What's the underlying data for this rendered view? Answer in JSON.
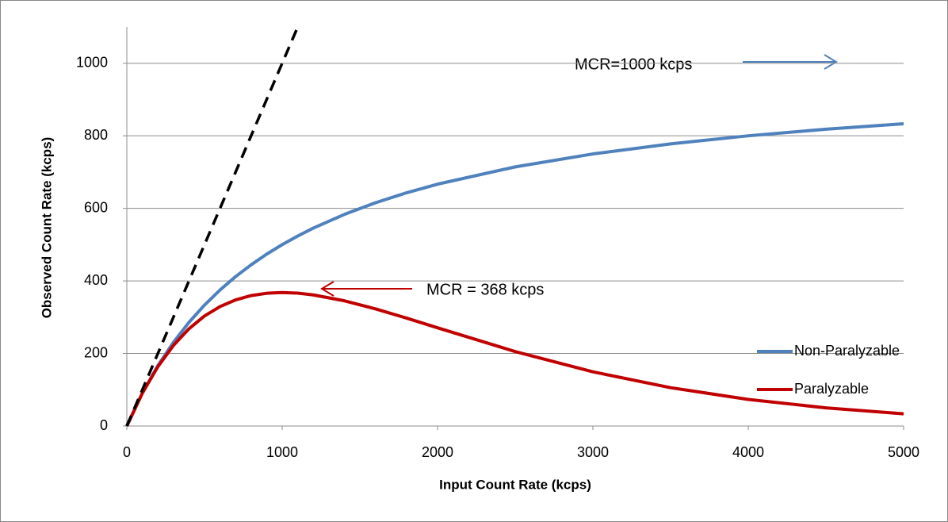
{
  "chart_data": {
    "type": "line",
    "x_label": "Input Count Rate (kcps)",
    "y_label": "Observed Count Rate (kcps)",
    "x": [
      0,
      100,
      200,
      300,
      400,
      500,
      600,
      700,
      800,
      900,
      1000,
      1100,
      1200,
      1400,
      1600,
      1800,
      2000,
      2500,
      3000,
      3500,
      4000,
      4500,
      5000
    ],
    "series": [
      {
        "name": "Non-Paralyzable",
        "color": "#4f81bd",
        "values": [
          0,
          90.9,
          166.7,
          230.8,
          285.7,
          333.3,
          375,
          411.8,
          444.4,
          473.7,
          500,
          523.8,
          545.5,
          583.3,
          615.4,
          642.9,
          666.7,
          714.3,
          750,
          777.8,
          800,
          818.2,
          833.3
        ]
      },
      {
        "name": "Paralyzable",
        "color": "#c00000",
        "values": [
          0,
          90.5,
          163.7,
          222.2,
          268.1,
          303.3,
          329.3,
          347.6,
          359.5,
          365.9,
          367.9,
          366.2,
          361.4,
          345.2,
          323.0,
          297.5,
          270.7,
          205.2,
          149.4,
          105.7,
          73.3,
          50.0,
          33.7
        ]
      },
      {
        "color": "#000000",
        "dashed": true,
        "values": [
          0,
          100,
          200,
          300,
          400,
          500,
          600,
          700,
          800,
          900,
          1000,
          1100,
          null,
          null,
          null,
          null,
          null,
          null,
          null,
          null,
          null,
          null,
          null
        ]
      }
    ],
    "xlim": [
      0,
      5000
    ],
    "xticks": [
      0,
      1000,
      2000,
      3000,
      4000,
      5000
    ],
    "ylim": [
      0,
      1100
    ],
    "yticks": [
      0,
      200,
      400,
      600,
      800,
      1000
    ],
    "grid": true,
    "legend": "right",
    "annotations": [
      {
        "text": "MCR=1000 kcps",
        "color": "#4f81bd"
      },
      {
        "text": "MCR = 368 kcps",
        "color": "#c00000"
      }
    ]
  }
}
